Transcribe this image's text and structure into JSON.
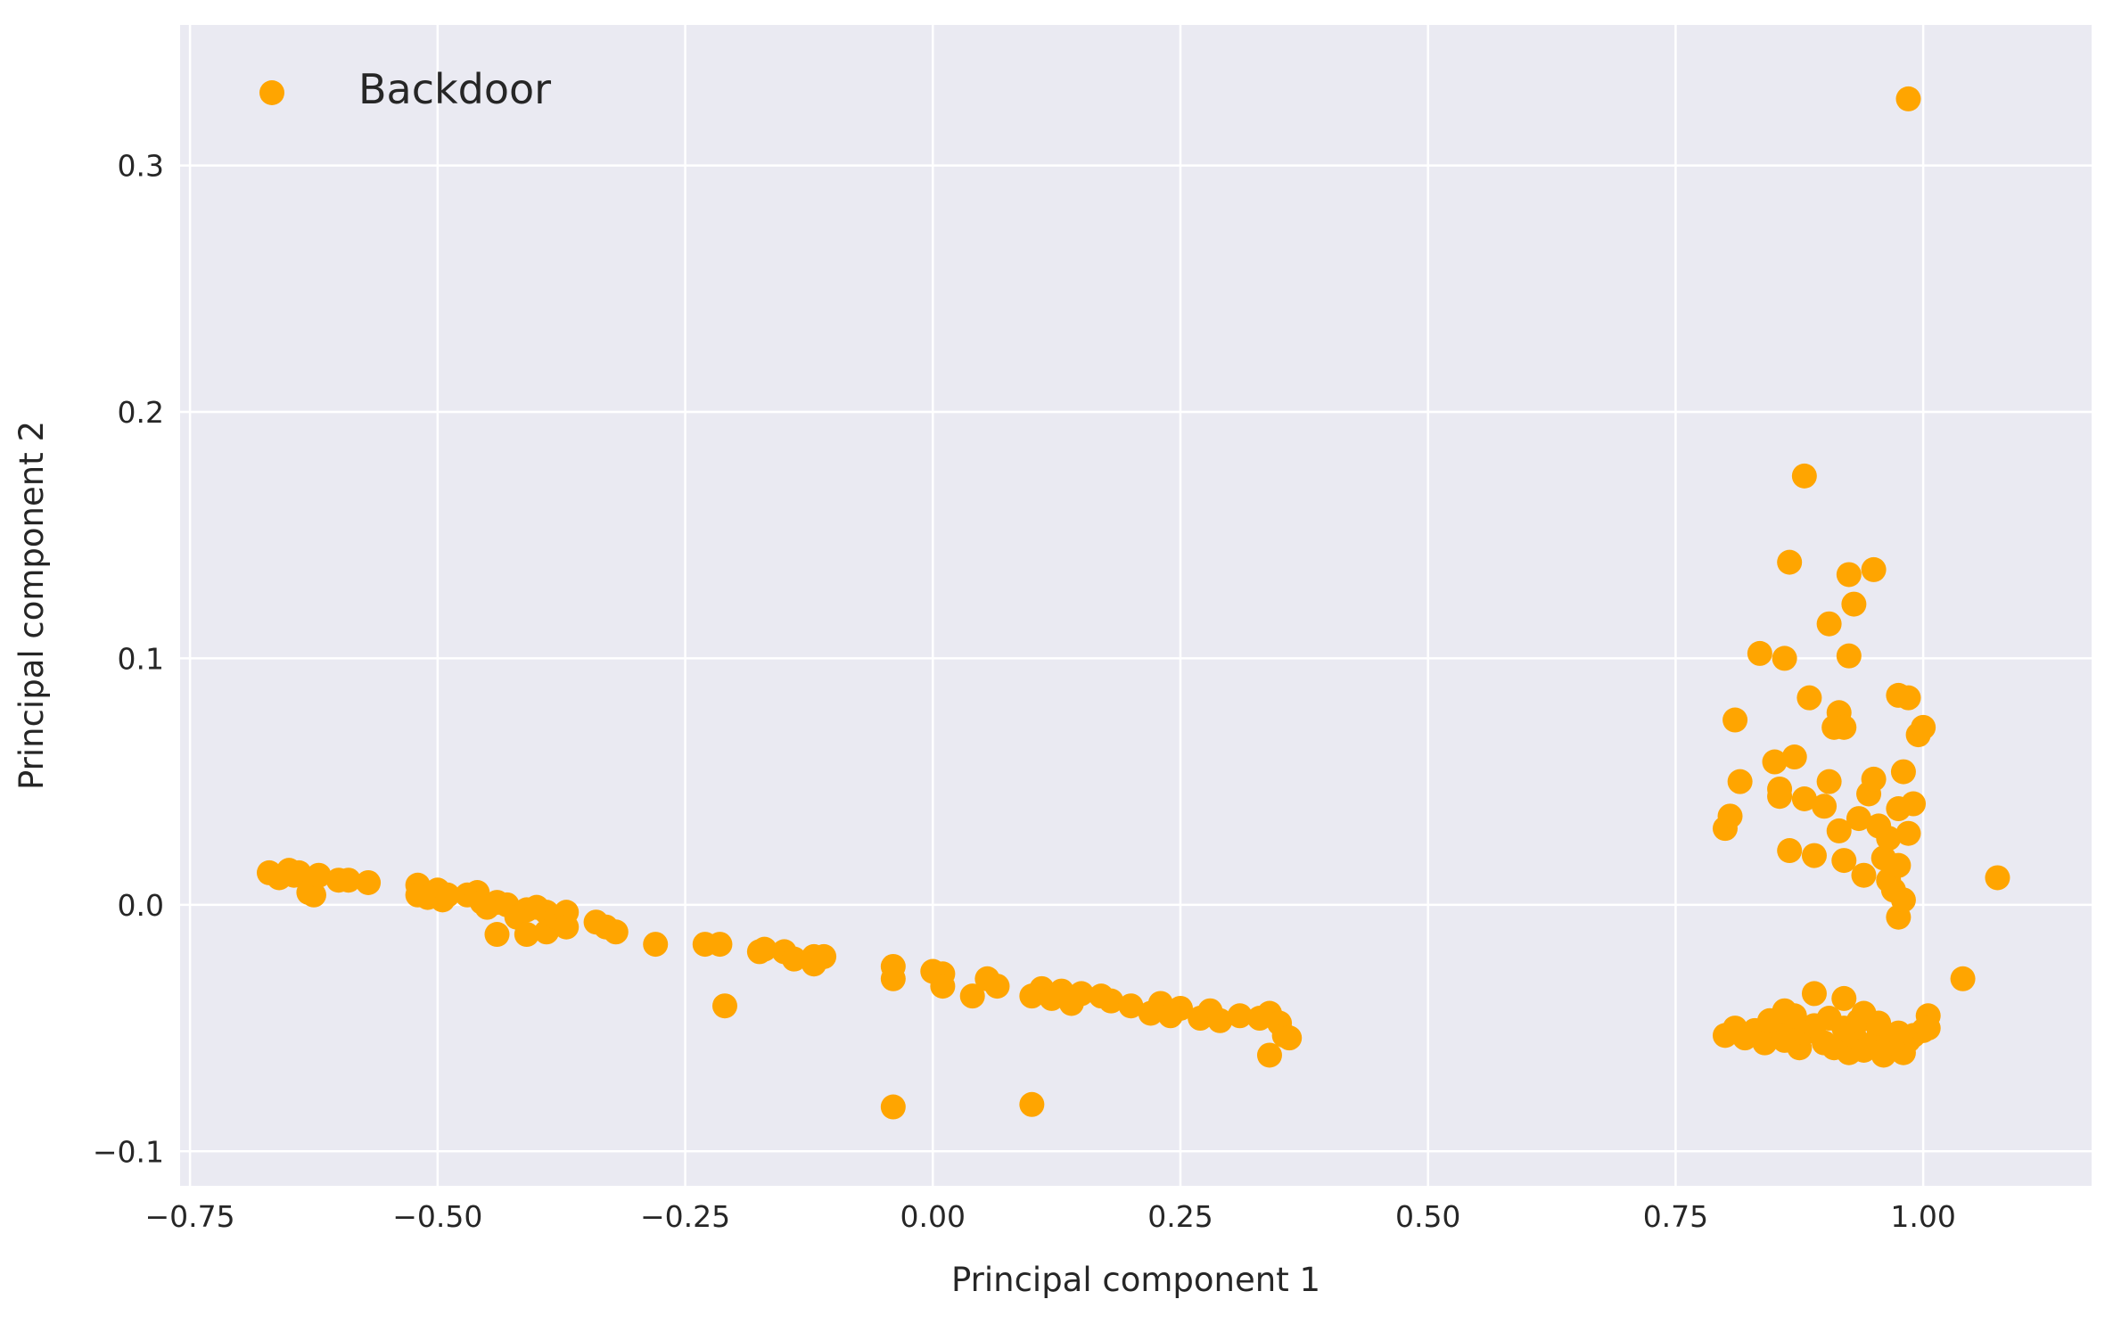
{
  "chart_data": {
    "type": "scatter",
    "xlabel": "Principal component 1",
    "ylabel": "Principal component 2",
    "xlim": [
      -0.76,
      1.17
    ],
    "ylim": [
      -0.114,
      0.357
    ],
    "xticks": [
      -0.75,
      -0.5,
      -0.25,
      0.0,
      0.25,
      0.5,
      0.75,
      1.0
    ],
    "xtick_labels": [
      "−0.75",
      "−0.50",
      "−0.25",
      "0.00",
      "0.25",
      "0.50",
      "0.75",
      "1.00"
    ],
    "yticks": [
      -0.1,
      0.0,
      0.1,
      0.2,
      0.3
    ],
    "ytick_labels": [
      "−0.1",
      "0.0",
      "0.1",
      "0.2",
      "0.3"
    ],
    "grid": true,
    "legend_position": "upper-left",
    "colors": {
      "background": "#eaeaf2",
      "grid": "#ffffff",
      "series": "#ffa500"
    },
    "series": [
      {
        "name": "Backdoor",
        "color": "#ffa500",
        "points": [
          [
            -0.67,
            0.013
          ],
          [
            -0.66,
            0.011
          ],
          [
            -0.65,
            0.014
          ],
          [
            -0.645,
            0.012
          ],
          [
            -0.64,
            0.013
          ],
          [
            -0.63,
            0.005
          ],
          [
            -0.625,
            0.004
          ],
          [
            -0.62,
            0.012
          ],
          [
            -0.6,
            0.01
          ],
          [
            -0.59,
            0.01
          ],
          [
            -0.57,
            0.009
          ],
          [
            -0.52,
            0.008
          ],
          [
            -0.52,
            0.004
          ],
          [
            -0.51,
            0.003
          ],
          [
            -0.5,
            0.006
          ],
          [
            -0.495,
            0.002
          ],
          [
            -0.49,
            0.004
          ],
          [
            -0.47,
            0.004
          ],
          [
            -0.46,
            0.005
          ],
          [
            -0.455,
            0.001
          ],
          [
            -0.45,
            -0.001
          ],
          [
            -0.44,
            0.001
          ],
          [
            -0.44,
            -0.012
          ],
          [
            -0.43,
            0.0
          ],
          [
            -0.42,
            -0.005
          ],
          [
            -0.41,
            -0.002
          ],
          [
            -0.41,
            -0.012
          ],
          [
            -0.4,
            -0.001
          ],
          [
            -0.39,
            -0.003
          ],
          [
            -0.39,
            -0.011
          ],
          [
            -0.38,
            -0.005
          ],
          [
            -0.37,
            -0.003
          ],
          [
            -0.37,
            -0.009
          ],
          [
            -0.34,
            -0.007
          ],
          [
            -0.33,
            -0.009
          ],
          [
            -0.32,
            -0.011
          ],
          [
            -0.28,
            -0.016
          ],
          [
            -0.23,
            -0.016
          ],
          [
            -0.215,
            -0.016
          ],
          [
            -0.21,
            -0.041
          ],
          [
            -0.175,
            -0.019
          ],
          [
            -0.17,
            -0.018
          ],
          [
            -0.15,
            -0.019
          ],
          [
            -0.14,
            -0.022
          ],
          [
            -0.12,
            -0.021
          ],
          [
            -0.12,
            -0.024
          ],
          [
            -0.11,
            -0.021
          ],
          [
            -0.04,
            -0.025
          ],
          [
            -0.04,
            -0.03
          ],
          [
            -0.04,
            -0.082
          ],
          [
            0.0,
            -0.027
          ],
          [
            0.01,
            -0.028
          ],
          [
            0.01,
            -0.033
          ],
          [
            0.04,
            -0.037
          ],
          [
            0.055,
            -0.03
          ],
          [
            0.065,
            -0.033
          ],
          [
            0.1,
            -0.037
          ],
          [
            0.1,
            -0.081
          ],
          [
            0.11,
            -0.034
          ],
          [
            0.12,
            -0.038
          ],
          [
            0.13,
            -0.035
          ],
          [
            0.14,
            -0.04
          ],
          [
            0.15,
            -0.036
          ],
          [
            0.17,
            -0.037
          ],
          [
            0.18,
            -0.039
          ],
          [
            0.2,
            -0.041
          ],
          [
            0.22,
            -0.044
          ],
          [
            0.23,
            -0.04
          ],
          [
            0.24,
            -0.045
          ],
          [
            0.25,
            -0.042
          ],
          [
            0.27,
            -0.046
          ],
          [
            0.28,
            -0.043
          ],
          [
            0.29,
            -0.047
          ],
          [
            0.31,
            -0.045
          ],
          [
            0.33,
            -0.046
          ],
          [
            0.34,
            -0.044
          ],
          [
            0.34,
            -0.061
          ],
          [
            0.35,
            -0.048
          ],
          [
            0.355,
            -0.053
          ],
          [
            0.36,
            -0.054
          ],
          [
            0.8,
            0.031
          ],
          [
            0.805,
            0.036
          ],
          [
            0.81,
            0.075
          ],
          [
            0.815,
            0.05
          ],
          [
            0.835,
            0.102
          ],
          [
            0.85,
            0.058
          ],
          [
            0.855,
            0.047
          ],
          [
            0.855,
            0.044
          ],
          [
            0.86,
            0.1
          ],
          [
            0.865,
            0.022
          ],
          [
            0.865,
            0.139
          ],
          [
            0.87,
            0.06
          ],
          [
            0.88,
            0.174
          ],
          [
            0.88,
            0.043
          ],
          [
            0.885,
            0.084
          ],
          [
            0.89,
            0.02
          ],
          [
            0.9,
            0.04
          ],
          [
            0.905,
            0.05
          ],
          [
            0.905,
            0.114
          ],
          [
            0.91,
            0.072
          ],
          [
            0.915,
            0.03
          ],
          [
            0.915,
            0.078
          ],
          [
            0.92,
            0.072
          ],
          [
            0.92,
            0.018
          ],
          [
            0.925,
            0.134
          ],
          [
            0.925,
            0.101
          ],
          [
            0.93,
            0.122
          ],
          [
            0.935,
            0.035
          ],
          [
            0.94,
            0.012
          ],
          [
            0.945,
            0.045
          ],
          [
            0.95,
            0.136
          ],
          [
            0.95,
            0.051
          ],
          [
            0.955,
            0.032
          ],
          [
            0.96,
            0.019
          ],
          [
            0.965,
            0.01
          ],
          [
            0.965,
            0.027
          ],
          [
            0.97,
            0.006
          ],
          [
            0.975,
            0.085
          ],
          [
            0.975,
            -0.005
          ],
          [
            0.98,
            0.054
          ],
          [
            0.98,
            0.002
          ],
          [
            0.985,
            0.084
          ],
          [
            0.985,
            0.029
          ],
          [
            0.99,
            0.041
          ],
          [
            0.995,
            0.069
          ],
          [
            0.975,
            0.039
          ],
          [
            0.975,
            0.016
          ],
          [
            0.985,
            0.327
          ],
          [
            1.0,
            0.072
          ],
          [
            1.075,
            0.011
          ],
          [
            0.89,
            -0.036
          ],
          [
            0.92,
            -0.038
          ],
          [
            1.04,
            -0.03
          ],
          [
            1.005,
            -0.045
          ],
          [
            0.8,
            -0.053
          ],
          [
            0.81,
            -0.05
          ],
          [
            0.82,
            -0.054
          ],
          [
            0.83,
            -0.051
          ],
          [
            0.84,
            -0.056
          ],
          [
            0.85,
            -0.049
          ],
          [
            0.86,
            -0.055
          ],
          [
            0.87,
            -0.047
          ],
          [
            0.875,
            -0.058
          ],
          [
            0.88,
            -0.052
          ],
          [
            0.89,
            -0.049
          ],
          [
            0.9,
            -0.056
          ],
          [
            0.905,
            -0.046
          ],
          [
            0.91,
            -0.058
          ],
          [
            0.92,
            -0.05
          ],
          [
            0.925,
            -0.06
          ],
          [
            0.93,
            -0.053
          ],
          [
            0.935,
            -0.047
          ],
          [
            0.94,
            -0.059
          ],
          [
            0.95,
            -0.056
          ],
          [
            0.955,
            -0.05
          ],
          [
            0.96,
            -0.061
          ],
          [
            0.965,
            -0.054
          ],
          [
            0.97,
            -0.058
          ],
          [
            0.975,
            -0.052
          ],
          [
            0.98,
            -0.06
          ],
          [
            0.985,
            -0.055
          ],
          [
            0.99,
            -0.053
          ],
          [
            1.0,
            -0.051
          ],
          [
            1.005,
            -0.05
          ],
          [
            0.845,
            -0.047
          ],
          [
            0.86,
            -0.043
          ],
          [
            0.87,
            -0.045
          ],
          [
            0.94,
            -0.044
          ],
          [
            0.955,
            -0.048
          ]
        ]
      }
    ]
  }
}
